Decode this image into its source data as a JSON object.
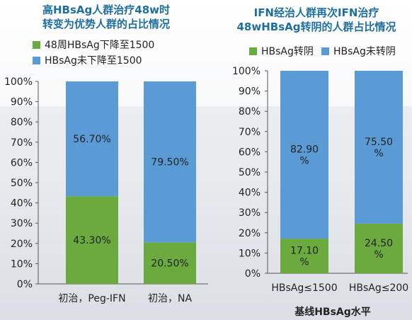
{
  "colors": {
    "green": "#6aaa3e",
    "blue": "#5b9bd5",
    "title": "#1f6f9e"
  },
  "chart_data": [
    {
      "type": "bar",
      "stacked": true,
      "title": "高HBsAg人群治疗48w时\n转变为优势人群的占比情况",
      "xlabel": "",
      "ylabel": "",
      "ylim": [
        0,
        100
      ],
      "yticks": [
        "0%",
        "10%",
        "20%",
        "30%",
        "40%",
        "50%",
        "60%",
        "70%",
        "80%",
        "90%",
        "100%"
      ],
      "categories": [
        "初治，Peg-IFN",
        "初治，NA"
      ],
      "series": [
        {
          "name": "48周HBsAg下降至1500",
          "values": [
            43.3,
            20.5
          ],
          "labels": [
            "43.30%",
            "20.50%"
          ]
        },
        {
          "name": "HBsAg未下降至1500",
          "values": [
            56.7,
            79.5
          ],
          "labels": [
            "56.70%",
            "79.50%"
          ]
        }
      ],
      "legend": "top",
      "grid": false
    },
    {
      "type": "bar",
      "stacked": true,
      "title": "IFN经治人群再次IFN治疗\n48wHBsAg转阴的人群占比情况",
      "xlabel": "基线HBsAg水平",
      "ylabel": "",
      "ylim": [
        0,
        100
      ],
      "yticks": [
        "0%",
        "10%",
        "20%",
        "30%",
        "40%",
        "50%",
        "60%",
        "70%",
        "80%",
        "90%",
        "100%"
      ],
      "categories": [
        "HBsAg≤1500",
        "HBsAg≤200"
      ],
      "series": [
        {
          "name": "HBsAg转阴",
          "values": [
            17.1,
            24.5
          ],
          "labels": [
            "17.10\n%",
            "24.50\n%"
          ]
        },
        {
          "name": "HBsAg未转阴",
          "values": [
            82.9,
            75.5
          ],
          "labels": [
            "82.90\n%",
            "75.50\n%"
          ]
        }
      ],
      "legend": "top",
      "grid": false
    }
  ]
}
